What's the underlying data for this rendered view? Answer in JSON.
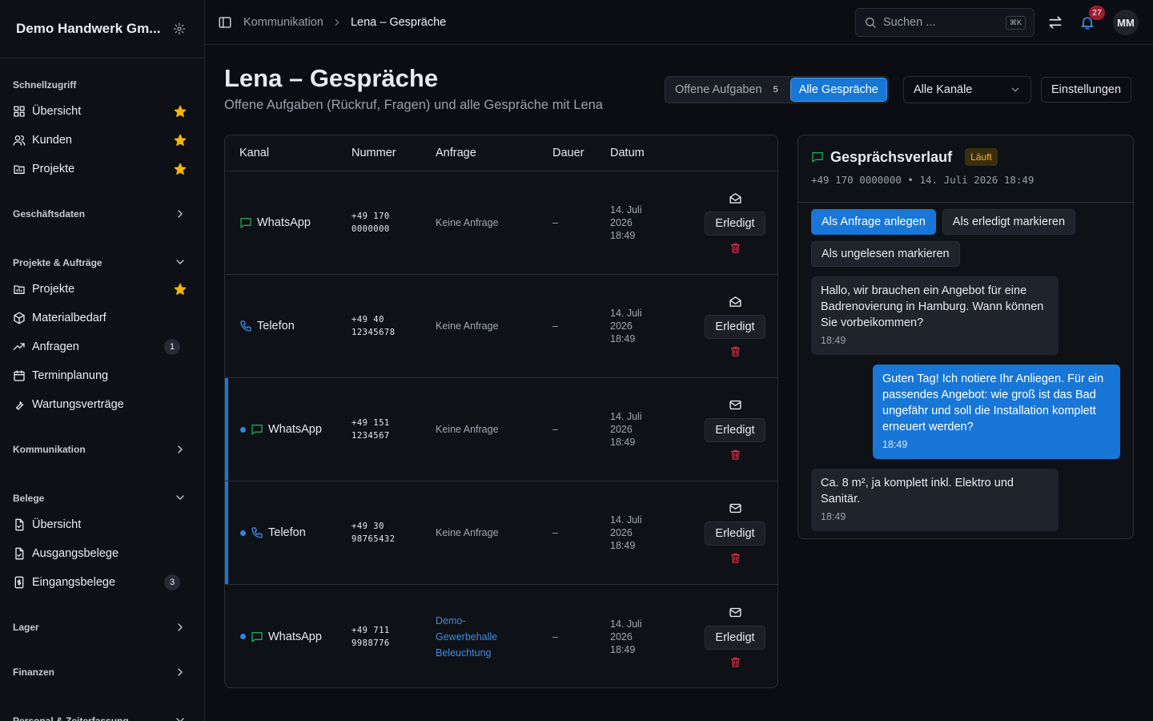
{
  "sidebar": {
    "company": "Demo Handwerk Gm...",
    "sections": [
      {
        "label": "Schnellzugriff",
        "expanded": true,
        "plain": true,
        "items": [
          {
            "label": "Übersicht",
            "icon": "grid",
            "starred": true
          },
          {
            "label": "Kunden",
            "icon": "users",
            "starred": true
          },
          {
            "label": "Projekte",
            "icon": "folder",
            "starred": true
          }
        ]
      },
      {
        "label": "Geschäftsdaten",
        "expanded": false
      },
      {
        "label": "Projekte & Aufträge",
        "expanded": true,
        "items": [
          {
            "label": "Projekte",
            "icon": "folder",
            "starred": true
          },
          {
            "label": "Materialbedarf",
            "icon": "box"
          },
          {
            "label": "Anfragen",
            "icon": "trend",
            "badge": 1
          },
          {
            "label": "Terminplanung",
            "icon": "calendar"
          },
          {
            "label": "Wartungsverträge",
            "icon": "wrench"
          }
        ]
      },
      {
        "label": "Kommunikation",
        "expanded": false
      },
      {
        "label": "Belege",
        "expanded": true,
        "items": [
          {
            "label": "Übersicht",
            "icon": "file"
          },
          {
            "label": "Ausgangsbelege",
            "icon": "file"
          },
          {
            "label": "Eingangsbelege",
            "icon": "dollar",
            "badge": 3
          }
        ]
      },
      {
        "label": "Lager",
        "expanded": false
      },
      {
        "label": "Finanzen",
        "expanded": false
      },
      {
        "label": "Personal & Zeiterfassung",
        "expanded": true
      }
    ]
  },
  "topbar": {
    "breadcrumb": [
      "Kommunikation",
      "Lena – Gespräche"
    ],
    "search_placeholder": "Suchen ...",
    "search_shortcut": "⌘K",
    "notifications": 27,
    "avatar": "MM"
  },
  "header": {
    "title": "Lena – Gespräche",
    "subtitle": "Offene Aufgaben (Rückruf, Fragen) und alle Gespräche mit Lena",
    "tabs": [
      {
        "label": "Offene Aufgaben",
        "count": 5,
        "active": false
      },
      {
        "label": "Alle Gespräche",
        "active": true
      }
    ],
    "channel_filter": "Alle Kanäle",
    "settings_button": "Einstellungen"
  },
  "table": {
    "columns": [
      "Kanal",
      "Nummer",
      "Anfrage",
      "Dauer",
      "Datum"
    ],
    "rows": [
      {
        "channel": "WhatsApp",
        "number": "+49 170 0000000",
        "request": "Keine Anfrage",
        "duration": "–",
        "date": "14. Juli 2026 18:49",
        "action": "Erledigt",
        "unread": false,
        "highlighted": false,
        "linked": false
      },
      {
        "channel": "Telefon",
        "number": "+49 40 12345678",
        "request": "Keine Anfrage",
        "duration": "–",
        "date": "14. Juli 2026 18:49",
        "action": "Erledigt",
        "unread": false,
        "highlighted": false,
        "linked": false
      },
      {
        "channel": "WhatsApp",
        "number": "+49 151 1234567",
        "request": "Keine Anfrage",
        "duration": "–",
        "date": "14. Juli 2026 18:49",
        "action": "Erledigt",
        "unread": true,
        "highlighted": true,
        "linked": false
      },
      {
        "channel": "Telefon",
        "number": "+49 30 98765432",
        "request": "Keine Anfrage",
        "duration": "–",
        "date": "14. Juli 2026 18:49",
        "action": "Erledigt",
        "unread": true,
        "highlighted": true,
        "linked": false
      },
      {
        "channel": "WhatsApp",
        "number": "+49 711 9988776",
        "request": "Demo-Gewerbehalle Beleuchtung",
        "duration": "–",
        "date": "14. Juli 2026 18:49",
        "action": "Erledigt",
        "unread": true,
        "highlighted": false,
        "linked": true
      }
    ]
  },
  "panel": {
    "title": "Gesprächsverlauf",
    "status": "Läuft",
    "meta": "+49 170 0000000 • 14. Juli 2026 18:49",
    "actions": [
      {
        "label": "Als Anfrage anlegen",
        "primary": true
      },
      {
        "label": "Als erledigt markieren",
        "primary": false
      },
      {
        "label": "Als ungelesen markieren",
        "primary": false
      }
    ],
    "messages": [
      {
        "from": "customer",
        "text": "Hallo, wir brauchen ein Angebot für eine Badrenovierung in Hamburg. Wann können Sie vorbeikommen?",
        "time": "18:49"
      },
      {
        "from": "agent",
        "text": "Guten Tag! Ich notiere Ihr Anliegen. Für ein passendes Angebot: wie groß ist das Bad ungefähr und soll die Installation komplett erneuert werden?",
        "time": "18:49"
      },
      {
        "from": "customer",
        "text": "Ca. 8 m², ja komplett inkl. Elektro und Sanitär.",
        "time": "18:49"
      }
    ]
  }
}
